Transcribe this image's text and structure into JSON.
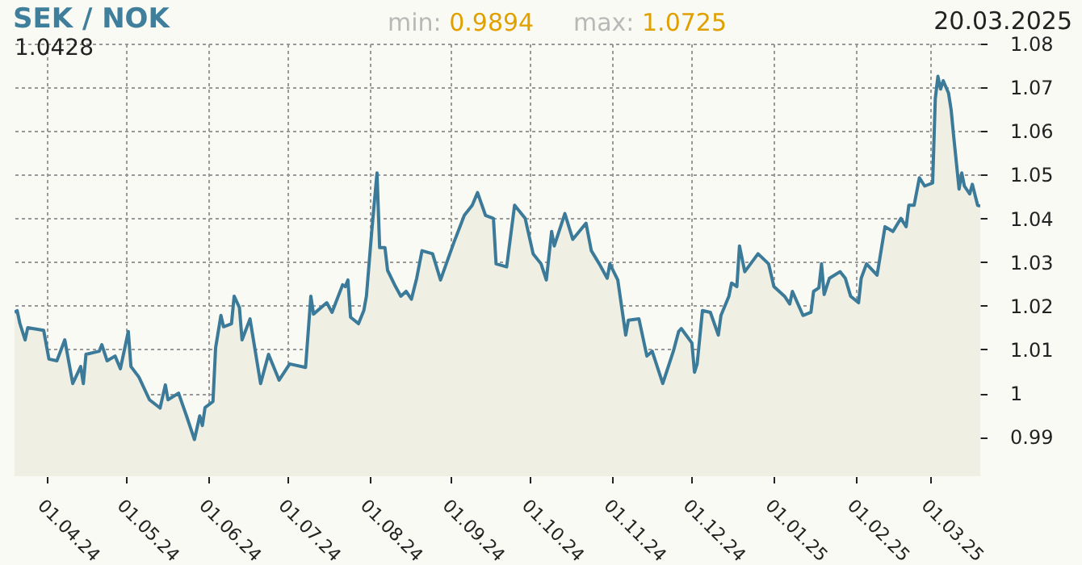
{
  "chart_data": {
    "type": "area",
    "title": "SEK / NOK",
    "annotations": [
      "min: 0.9894",
      "max: 1.0725",
      "20.03.2025",
      "1.0428"
    ],
    "x": [
      "2024-03-20",
      "2024-03-21",
      "2024-03-22",
      "2024-03-24",
      "2024-03-25",
      "2024-03-31",
      "2024-04-02",
      "2024-04-05",
      "2024-04-08",
      "2024-04-11",
      "2024-04-14",
      "2024-04-15",
      "2024-04-16",
      "2024-04-21",
      "2024-04-22",
      "2024-04-24",
      "2024-04-27",
      "2024-04-29",
      "2024-05-02",
      "2024-05-03",
      "2024-05-06",
      "2024-05-10",
      "2024-05-14",
      "2024-05-16",
      "2024-05-17",
      "2024-05-21",
      "2024-05-24",
      "2024-05-27",
      "2024-05-29",
      "2024-05-30",
      "2024-05-31",
      "2024-06-03",
      "2024-06-04",
      "2024-06-06",
      "2024-06-07",
      "2024-06-10",
      "2024-06-11",
      "2024-06-13",
      "2024-06-14",
      "2024-06-17",
      "2024-06-21",
      "2024-06-24",
      "2024-06-28",
      "2024-07-02",
      "2024-07-08",
      "2024-07-10",
      "2024-07-11",
      "2024-07-16",
      "2024-07-18",
      "2024-07-22",
      "2024-07-23",
      "2024-07-24",
      "2024-07-25",
      "2024-07-28",
      "2024-07-30",
      "2024-07-31",
      "2024-08-02",
      "2024-08-04",
      "2024-08-05",
      "2024-08-07",
      "2024-08-08",
      "2024-08-11",
      "2024-08-13",
      "2024-08-15",
      "2024-08-17",
      "2024-08-19",
      "2024-08-21",
      "2024-08-25",
      "2024-08-28",
      "2024-09-02",
      "2024-09-06",
      "2024-09-09",
      "2024-09-11",
      "2024-09-14",
      "2024-09-17",
      "2024-09-18",
      "2024-09-22",
      "2024-09-25",
      "2024-09-29",
      "2024-10-02",
      "2024-10-05",
      "2024-10-07",
      "2024-10-09",
      "2024-10-10",
      "2024-10-14",
      "2024-10-17",
      "2024-10-22",
      "2024-10-24",
      "2024-10-27",
      "2024-10-30",
      "2024-10-31",
      "2024-11-03",
      "2024-11-06",
      "2024-11-07",
      "2024-11-11",
      "2024-11-14",
      "2024-11-16",
      "2024-11-20",
      "2024-11-24",
      "2024-11-26",
      "2024-11-27",
      "2024-12-01",
      "2024-12-02",
      "2024-12-03",
      "2024-12-05",
      "2024-12-08",
      "2024-12-11",
      "2024-12-12",
      "2024-12-15",
      "2024-12-16",
      "2024-12-18",
      "2024-12-19",
      "2024-12-21",
      "2024-12-26",
      "2024-12-30",
      "2025-01-01",
      "2025-01-05",
      "2025-01-07",
      "2025-01-08",
      "2025-01-12",
      "2025-01-15",
      "2025-01-16",
      "2025-01-18",
      "2025-01-19",
      "2025-01-20",
      "2025-01-22",
      "2025-01-26",
      "2025-01-28",
      "2025-01-30",
      "2025-02-02",
      "2025-02-03",
      "2025-02-05",
      "2025-02-09",
      "2025-02-12",
      "2025-02-15",
      "2025-02-18",
      "2025-02-20",
      "2025-02-21",
      "2025-02-23",
      "2025-02-25",
      "2025-02-27",
      "2025-03-02",
      "2025-03-03",
      "2025-03-04",
      "2025-03-05",
      "2025-03-06",
      "2025-03-08",
      "2025-03-09",
      "2025-03-10",
      "2025-03-12",
      "2025-03-13",
      "2025-03-14",
      "2025-03-16",
      "2025-03-17",
      "2025-03-19",
      "2025-03-20"
    ],
    "series": [
      {
        "color": "#3b7a99",
        "values": [
          1.0185,
          1.0189,
          1.016,
          1.0122,
          1.015,
          1.0144,
          1.0078,
          1.0074,
          1.0122,
          1.0022,
          1.0061,
          1.0022,
          1.0089,
          1.0096,
          1.0111,
          1.0074,
          1.0085,
          1.0056,
          1.0141,
          1.0061,
          1.0037,
          0.9985,
          0.9966,
          1.0019,
          0.9985,
          1.0,
          0.9948,
          0.9894,
          0.9948,
          0.9926,
          0.9967,
          0.9981,
          1.0104,
          1.0178,
          1.0152,
          1.0159,
          1.0222,
          1.0196,
          1.0122,
          1.017,
          1.0022,
          1.0089,
          1.003,
          1.0067,
          1.0059,
          1.0222,
          1.0181,
          1.0207,
          1.0185,
          1.0248,
          1.0244,
          1.0259,
          1.0174,
          1.0159,
          1.0189,
          1.0222,
          1.037,
          1.0504,
          1.0333,
          1.0333,
          1.0281,
          1.0244,
          1.0222,
          1.0233,
          1.0215,
          1.0263,
          1.0326,
          1.0319,
          1.0259,
          1.0344,
          1.0407,
          1.043,
          1.0459,
          1.0407,
          1.04,
          1.0296,
          1.0289,
          1.043,
          1.04,
          1.0319,
          1.0296,
          1.0259,
          1.037,
          1.0337,
          1.0411,
          1.0352,
          1.0389,
          1.0326,
          1.0296,
          1.0263,
          1.0296,
          1.0259,
          1.0133,
          1.0167,
          1.017,
          1.0085,
          1.0096,
          1.0022,
          1.0096,
          1.0141,
          1.0148,
          1.0115,
          1.0048,
          1.0067,
          1.0189,
          1.0185,
          1.0133,
          1.0178,
          1.0222,
          1.0252,
          1.0244,
          1.0337,
          1.0278,
          1.0319,
          1.0296,
          1.0244,
          1.0222,
          1.0204,
          1.0233,
          1.0178,
          1.0185,
          1.0233,
          1.0241,
          1.0296,
          1.0226,
          1.0263,
          1.0278,
          1.0263,
          1.0222,
          1.0207,
          1.0263,
          1.0296,
          1.027,
          1.0381,
          1.037,
          1.04,
          1.0381,
          1.043,
          1.043,
          1.0493,
          1.0474,
          1.0481,
          1.0674,
          1.0725,
          1.0696,
          1.0715,
          1.0687,
          1.0648,
          1.0585,
          1.0467,
          1.0504,
          1.0474,
          1.0456,
          1.0478,
          1.043,
          1.0428
        ]
      }
    ],
    "xlim": [
      "2024-03-20",
      "2025-03-20"
    ],
    "xticks": [
      {
        "value": "2024-04-01",
        "label": "01.04.24"
      },
      {
        "value": "2024-05-01",
        "label": "01.05.24"
      },
      {
        "value": "2024-06-01",
        "label": "01.06.24"
      },
      {
        "value": "2024-07-01",
        "label": "01.07.24"
      },
      {
        "value": "2024-08-01",
        "label": "01.08.24"
      },
      {
        "value": "2024-09-01",
        "label": "01.09.24"
      },
      {
        "value": "2024-10-01",
        "label": "01.10.24"
      },
      {
        "value": "2024-11-01",
        "label": "01.11.24"
      },
      {
        "value": "2024-12-01",
        "label": "01.12.24"
      },
      {
        "value": "2025-01-01",
        "label": "01.01.25"
      },
      {
        "value": "2025-02-01",
        "label": "01.02.25"
      },
      {
        "value": "2025-03-01",
        "label": "01.03.25"
      }
    ],
    "ylim": [
      0.981,
      1.08
    ],
    "yticks": [
      0.99,
      1,
      1.01,
      1.02,
      1.03,
      1.04,
      1.05,
      1.06,
      1.07,
      1.08
    ],
    "grid": true
  }
}
